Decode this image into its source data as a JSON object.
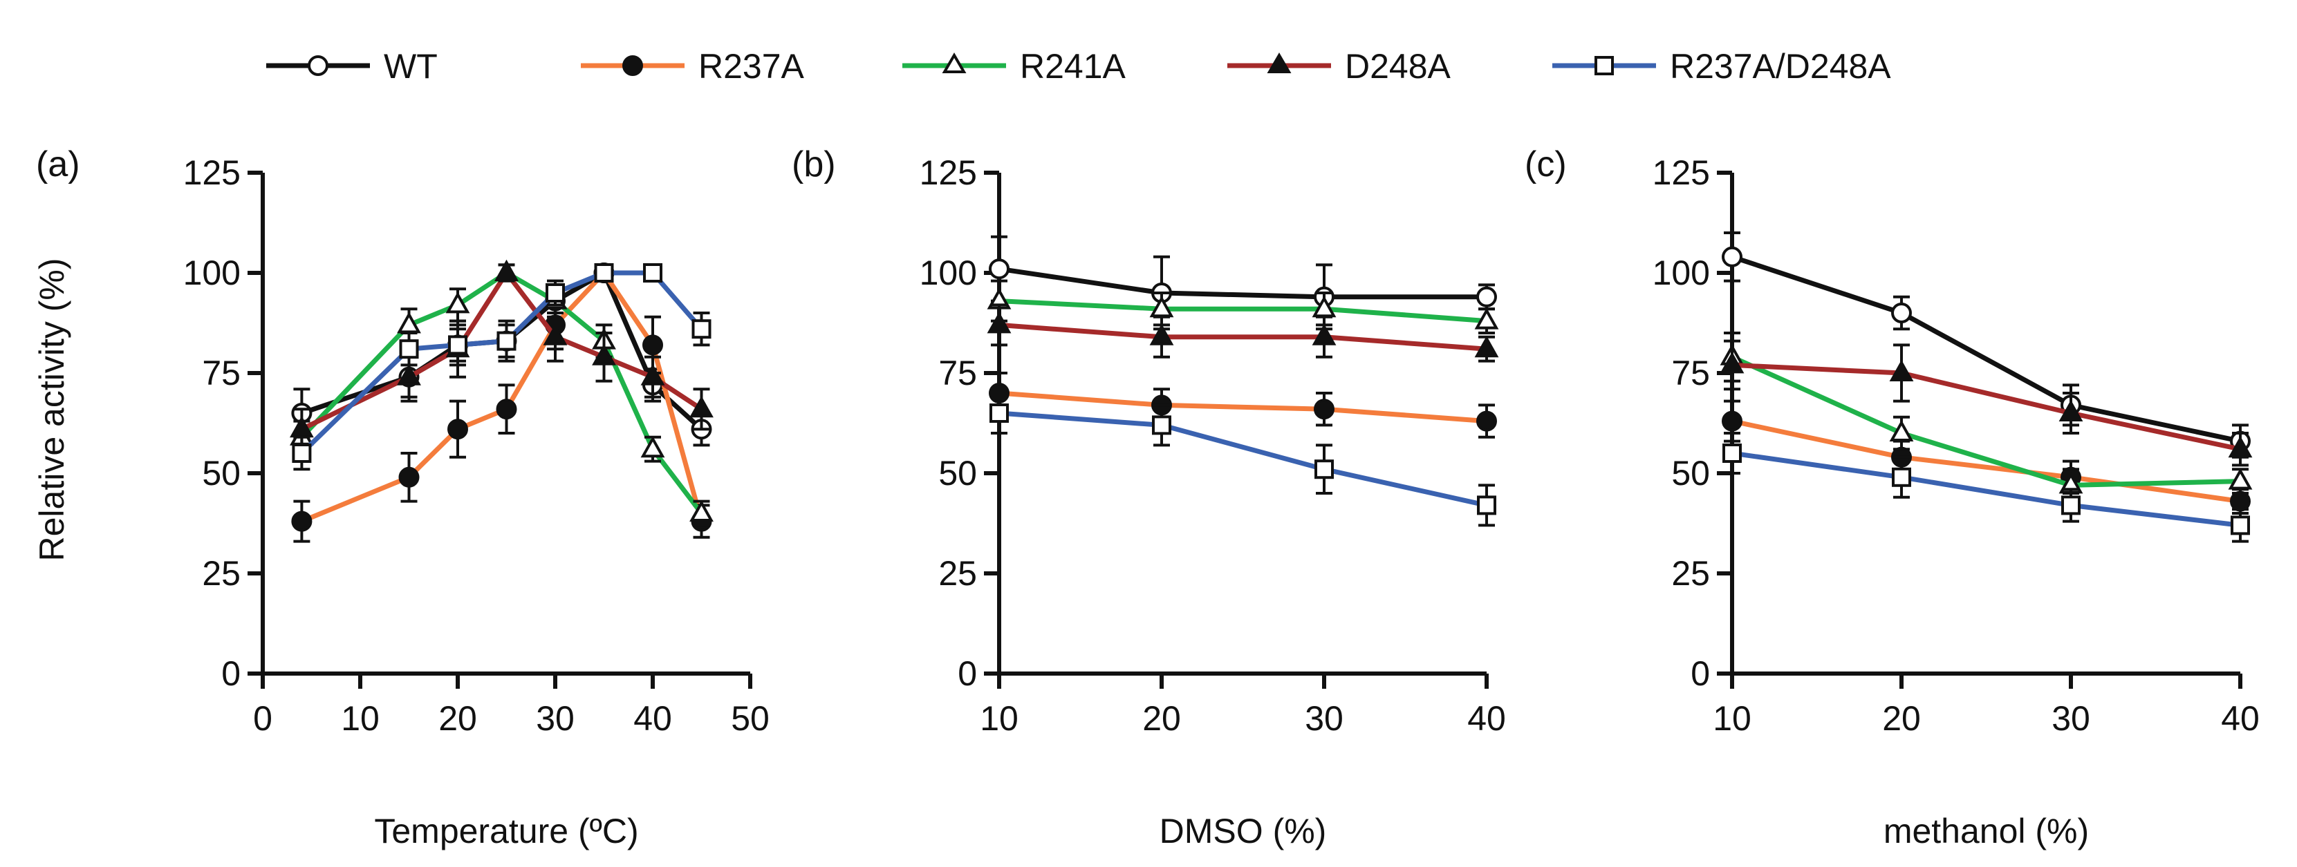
{
  "legend": {
    "items": [
      {
        "name": "WT",
        "color": "#111111",
        "marker": "circle-open"
      },
      {
        "name": "R237A",
        "color": "#f47c3c",
        "marker": "circle-filled"
      },
      {
        "name": "R241A",
        "color": "#1fb24a",
        "marker": "triangle-open"
      },
      {
        "name": "D248A",
        "color": "#a52a2a",
        "marker": "triangle-filled"
      },
      {
        "name": "R237A/D248A",
        "color": "#3a62b0",
        "marker": "square-open"
      }
    ]
  },
  "ylabel": "Relative activity (%)",
  "chart_data": [
    {
      "panel": "(a)",
      "type": "line",
      "xlabel": "Temperature (ºC)",
      "ylabel": "Relative activity (%)",
      "xlim": [
        0,
        50
      ],
      "ylim": [
        0,
        125
      ],
      "xticks": [
        0,
        10,
        20,
        30,
        40,
        50
      ],
      "yticks": [
        0,
        25,
        50,
        75,
        100,
        125
      ],
      "x": [
        4,
        15,
        20,
        25,
        30,
        35,
        40,
        45
      ],
      "series": [
        {
          "name": "WT",
          "values": [
            65,
            74,
            82,
            83,
            93,
            100,
            72,
            61
          ],
          "errors": [
            6,
            5,
            5,
            5,
            4,
            2,
            4,
            4
          ]
        },
        {
          "name": "R237A",
          "values": [
            38,
            49,
            61,
            66,
            87,
            100,
            82,
            38
          ],
          "errors": [
            5,
            6,
            7,
            6,
            6,
            2,
            7,
            4
          ]
        },
        {
          "name": "R241A",
          "values": [
            59,
            87,
            92,
            100,
            93,
            83,
            56,
            40
          ],
          "errors": [
            4,
            4,
            4,
            2,
            3,
            4,
            3,
            3
          ]
        },
        {
          "name": "D248A",
          "values": [
            61,
            74,
            81,
            100,
            84,
            79,
            74,
            66
          ],
          "errors": [
            5,
            6,
            7,
            2,
            6,
            6,
            5,
            5
          ]
        },
        {
          "name": "R237A/D248A",
          "values": [
            55,
            81,
            82,
            83,
            95,
            100,
            100,
            86
          ],
          "errors": [
            4,
            4,
            4,
            4,
            3,
            2,
            2,
            4
          ]
        }
      ]
    },
    {
      "panel": "(b)",
      "type": "line",
      "xlabel": "DMSO (%)",
      "ylabel": "",
      "xlim": [
        10,
        40
      ],
      "ylim": [
        0,
        125
      ],
      "xticks": [
        10,
        20,
        30,
        40
      ],
      "yticks": [
        0,
        25,
        50,
        75,
        100,
        125
      ],
      "x": [
        10,
        20,
        30,
        40
      ],
      "series": [
        {
          "name": "WT",
          "values": [
            101,
            95,
            94,
            94
          ],
          "errors": [
            8,
            9,
            8,
            3
          ]
        },
        {
          "name": "R237A",
          "values": [
            70,
            67,
            66,
            63
          ],
          "errors": [
            5,
            4,
            4,
            4
          ]
        },
        {
          "name": "R241A",
          "values": [
            93,
            91,
            91,
            88
          ],
          "errors": [
            5,
            4,
            4,
            3
          ]
        },
        {
          "name": "D248A",
          "values": [
            87,
            84,
            84,
            81
          ],
          "errors": [
            5,
            5,
            5,
            3
          ]
        },
        {
          "name": "R237A/D248A",
          "values": [
            65,
            62,
            51,
            42
          ],
          "errors": [
            5,
            5,
            6,
            5
          ]
        }
      ]
    },
    {
      "panel": "(c)",
      "type": "line",
      "xlabel": "methanol (%)",
      "ylabel": "",
      "xlim": [
        10,
        40
      ],
      "ylim": [
        0,
        125
      ],
      "xticks": [
        10,
        20,
        30,
        40
      ],
      "yticks": [
        0,
        25,
        50,
        75,
        100,
        125
      ],
      "x": [
        10,
        20,
        30,
        40
      ],
      "series": [
        {
          "name": "WT",
          "values": [
            104,
            90,
            67,
            58
          ],
          "errors": [
            6,
            4,
            5,
            4
          ]
        },
        {
          "name": "R237A",
          "values": [
            63,
            54,
            49,
            43
          ],
          "errors": [
            5,
            4,
            4,
            3
          ]
        },
        {
          "name": "R241A",
          "values": [
            79,
            60,
            47,
            48
          ],
          "errors": [
            6,
            4,
            4,
            3
          ]
        },
        {
          "name": "D248A",
          "values": [
            77,
            75,
            65,
            56
          ],
          "errors": [
            6,
            7,
            5,
            4
          ]
        },
        {
          "name": "R237A/D248A",
          "values": [
            55,
            49,
            42,
            37
          ],
          "errors": [
            5,
            5,
            4,
            4
          ]
        }
      ]
    }
  ]
}
